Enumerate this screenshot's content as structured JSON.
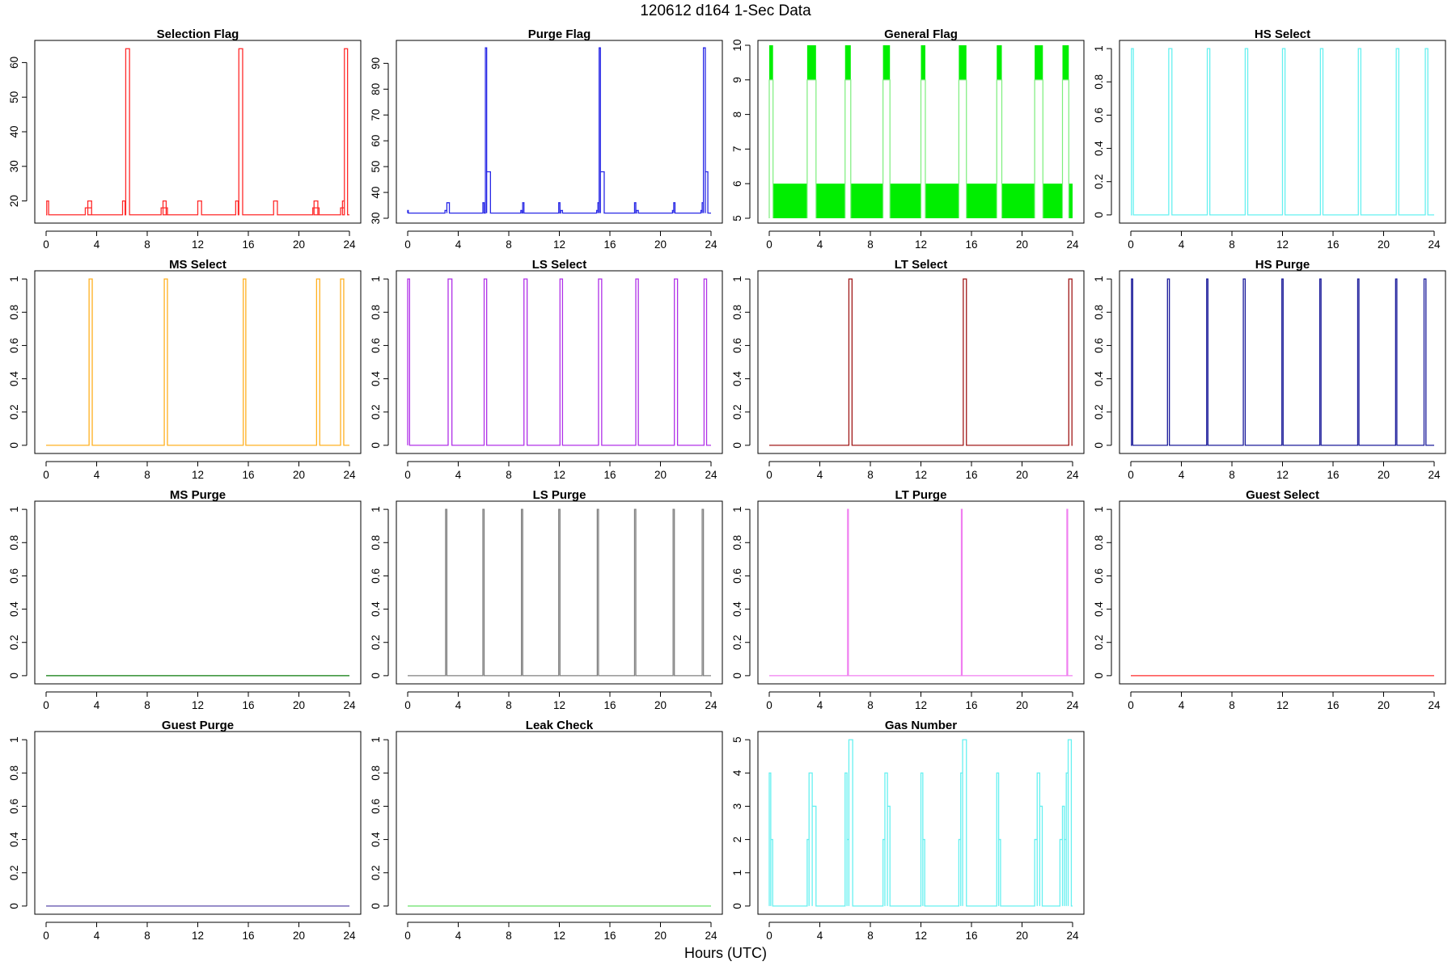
{
  "figure": {
    "title": "120612   d164   1-Sec Data",
    "xlabel": "Hours (UTC)"
  },
  "chart_data": [
    {
      "type": "line",
      "title": "Selection Flag",
      "color": "#ff2a2a",
      "xlim": [
        0,
        24
      ],
      "ylim": [
        15,
        65
      ],
      "x_ticks": [
        0,
        4,
        8,
        12,
        16,
        20,
        24
      ],
      "y_ticks": [
        20,
        30,
        40,
        50,
        60
      ],
      "base": 16,
      "events": [
        {
          "x": 0.05,
          "w": 0.15,
          "v": 20
        },
        {
          "x": 3.1,
          "w": 0.5,
          "v": 18
        },
        {
          "x": 3.3,
          "w": 0.3,
          "v": 20
        },
        {
          "x": 6.05,
          "w": 0.2,
          "v": 20
        },
        {
          "x": 6.3,
          "w": 0.3,
          "v": 64
        },
        {
          "x": 9.1,
          "w": 0.5,
          "v": 18
        },
        {
          "x": 9.25,
          "w": 0.25,
          "v": 20
        },
        {
          "x": 12.0,
          "w": 0.3,
          "v": 20
        },
        {
          "x": 15.0,
          "w": 0.2,
          "v": 20
        },
        {
          "x": 15.25,
          "w": 0.3,
          "v": 64
        },
        {
          "x": 18.0,
          "w": 0.3,
          "v": 20
        },
        {
          "x": 21.1,
          "w": 0.5,
          "v": 18
        },
        {
          "x": 21.2,
          "w": 0.3,
          "v": 20
        },
        {
          "x": 23.3,
          "w": 0.3,
          "v": 18
        },
        {
          "x": 23.45,
          "w": 0.15,
          "v": 20
        },
        {
          "x": 23.6,
          "w": 0.25,
          "v": 64
        }
      ]
    },
    {
      "type": "line",
      "title": "Purge Flag",
      "color": "#2828e6",
      "xlim": [
        0,
        24
      ],
      "ylim": [
        30,
        97
      ],
      "x_ticks": [
        0,
        4,
        8,
        12,
        16,
        20,
        24
      ],
      "y_ticks": [
        30,
        40,
        50,
        60,
        70,
        80,
        90
      ],
      "base": 32,
      "events": [
        {
          "x": 0.0,
          "w": 0.05,
          "v": 33
        },
        {
          "x": 2.95,
          "w": 0.15,
          "v": 33
        },
        {
          "x": 3.1,
          "w": 0.2,
          "v": 36
        },
        {
          "x": 5.95,
          "w": 0.1,
          "v": 36
        },
        {
          "x": 6.15,
          "w": 0.1,
          "v": 96
        },
        {
          "x": 6.25,
          "w": 0.3,
          "v": 48
        },
        {
          "x": 8.95,
          "w": 0.1,
          "v": 33
        },
        {
          "x": 9.1,
          "w": 0.1,
          "v": 36
        },
        {
          "x": 11.95,
          "w": 0.1,
          "v": 36
        },
        {
          "x": 12.1,
          "w": 0.15,
          "v": 33
        },
        {
          "x": 14.95,
          "w": 0.1,
          "v": 33
        },
        {
          "x": 15.05,
          "w": 0.1,
          "v": 36
        },
        {
          "x": 15.15,
          "w": 0.1,
          "v": 96
        },
        {
          "x": 15.25,
          "w": 0.3,
          "v": 48
        },
        {
          "x": 17.95,
          "w": 0.1,
          "v": 36
        },
        {
          "x": 18.1,
          "w": 0.15,
          "v": 33
        },
        {
          "x": 20.95,
          "w": 0.1,
          "v": 33
        },
        {
          "x": 21.05,
          "w": 0.1,
          "v": 36
        },
        {
          "x": 23.2,
          "w": 0.1,
          "v": 33
        },
        {
          "x": 23.3,
          "w": 0.1,
          "v": 36
        },
        {
          "x": 23.4,
          "w": 0.15,
          "v": 96
        },
        {
          "x": 23.55,
          "w": 0.2,
          "v": 48
        }
      ]
    },
    {
      "type": "area",
      "title": "General Flag",
      "color": "#00ee00",
      "line_color": "#7cee7c",
      "xlim": [
        0,
        24
      ],
      "ylim": [
        5,
        10
      ],
      "x_ticks": [
        0,
        4,
        8,
        12,
        16,
        20,
        24
      ],
      "y_ticks": [
        5,
        6,
        7,
        8,
        9,
        10
      ],
      "band": [
        5,
        6
      ],
      "band_segments": [
        [
          0.3,
          3.0
        ],
        [
          3.7,
          6.0
        ],
        [
          6.45,
          9.0
        ],
        [
          9.55,
          12.0
        ],
        [
          12.35,
          15.0
        ],
        [
          15.6,
          18.0
        ],
        [
          18.4,
          21.0
        ],
        [
          21.65,
          23.2
        ],
        [
          23.7,
          24.0
        ]
      ],
      "events": [
        {
          "x": 0.0,
          "w": 0.3,
          "v": 9,
          "top": 10
        },
        {
          "x": 3.0,
          "w": 0.7,
          "v": 9,
          "top": 10
        },
        {
          "x": 6.0,
          "w": 0.45,
          "v": 9,
          "top": 10
        },
        {
          "x": 9.0,
          "w": 0.55,
          "v": 9,
          "top": 10
        },
        {
          "x": 12.0,
          "w": 0.35,
          "v": 9,
          "top": 10
        },
        {
          "x": 15.0,
          "w": 0.6,
          "v": 9,
          "top": 10
        },
        {
          "x": 18.0,
          "w": 0.4,
          "v": 9,
          "top": 10
        },
        {
          "x": 21.0,
          "w": 0.65,
          "v": 9,
          "top": 10
        },
        {
          "x": 23.2,
          "w": 0.5,
          "v": 9,
          "top": 10
        }
      ]
    },
    {
      "type": "line",
      "title": "HS Select",
      "color": "#66f0f0",
      "xlim": [
        0,
        24
      ],
      "ylim": [
        -0.02,
        1.02
      ],
      "x_ticks": [
        0,
        4,
        8,
        12,
        16,
        20,
        24
      ],
      "y_ticks": [
        0.0,
        0.2,
        0.4,
        0.6,
        0.8,
        1.0
      ],
      "base": 0,
      "events": [
        {
          "x": 0.05,
          "w": 0.15,
          "v": 1
        },
        {
          "x": 3.0,
          "w": 0.25,
          "v": 1
        },
        {
          "x": 6.05,
          "w": 0.2,
          "v": 1
        },
        {
          "x": 9.05,
          "w": 0.2,
          "v": 1
        },
        {
          "x": 12.0,
          "w": 0.2,
          "v": 1
        },
        {
          "x": 15.0,
          "w": 0.2,
          "v": 1
        },
        {
          "x": 18.0,
          "w": 0.2,
          "v": 1
        },
        {
          "x": 21.0,
          "w": 0.2,
          "v": 1
        },
        {
          "x": 23.3,
          "w": 0.2,
          "v": 1
        }
      ]
    },
    {
      "type": "line",
      "title": "MS Select",
      "color": "#ffb020",
      "xlim": [
        0,
        24
      ],
      "ylim": [
        -0.02,
        1.02
      ],
      "x_ticks": [
        0,
        4,
        8,
        12,
        16,
        20,
        24
      ],
      "y_ticks": [
        0.0,
        0.2,
        0.4,
        0.6,
        0.8,
        1.0
      ],
      "base": 0,
      "events": [
        {
          "x": 3.4,
          "w": 0.25,
          "v": 1
        },
        {
          "x": 9.35,
          "w": 0.25,
          "v": 1
        },
        {
          "x": 15.6,
          "w": 0.2,
          "v": 1
        },
        {
          "x": 21.4,
          "w": 0.25,
          "v": 1
        },
        {
          "x": 23.3,
          "w": 0.25,
          "v": 1
        }
      ]
    },
    {
      "type": "line",
      "title": "LS Select",
      "color": "#b030e8",
      "xlim": [
        0,
        24
      ],
      "ylim": [
        -0.02,
        1.02
      ],
      "x_ticks": [
        0,
        4,
        8,
        12,
        16,
        20,
        24
      ],
      "y_ticks": [
        0.0,
        0.2,
        0.4,
        0.6,
        0.8,
        1.0
      ],
      "base": 0,
      "events": [
        {
          "x": 0.0,
          "w": 0.15,
          "v": 1
        },
        {
          "x": 3.2,
          "w": 0.3,
          "v": 1
        },
        {
          "x": 6.05,
          "w": 0.2,
          "v": 1
        },
        {
          "x": 9.2,
          "w": 0.25,
          "v": 1
        },
        {
          "x": 12.05,
          "w": 0.2,
          "v": 1
        },
        {
          "x": 15.1,
          "w": 0.25,
          "v": 1
        },
        {
          "x": 18.05,
          "w": 0.2,
          "v": 1
        },
        {
          "x": 21.1,
          "w": 0.25,
          "v": 1
        },
        {
          "x": 23.45,
          "w": 0.2,
          "v": 1
        }
      ]
    },
    {
      "type": "line",
      "title": "LT Select",
      "color": "#a01818",
      "xlim": [
        0,
        24
      ],
      "ylim": [
        -0.02,
        1.02
      ],
      "x_ticks": [
        0,
        4,
        8,
        12,
        16,
        20,
        24
      ],
      "y_ticks": [
        0.0,
        0.2,
        0.4,
        0.6,
        0.8,
        1.0
      ],
      "base": 0,
      "events": [
        {
          "x": 6.3,
          "w": 0.25,
          "v": 1
        },
        {
          "x": 15.35,
          "w": 0.25,
          "v": 1
        },
        {
          "x": 23.7,
          "w": 0.25,
          "v": 1
        }
      ]
    },
    {
      "type": "line",
      "title": "HS Purge",
      "color": "#1a1a9a",
      "xlim": [
        0,
        24
      ],
      "ylim": [
        -0.02,
        1.02
      ],
      "x_ticks": [
        0,
        4,
        8,
        12,
        16,
        20,
        24
      ],
      "y_ticks": [
        0.0,
        0.2,
        0.4,
        0.6,
        0.8,
        1.0
      ],
      "base": 0,
      "events": [
        {
          "x": 0.05,
          "w": 0.1,
          "v": 1
        },
        {
          "x": 2.9,
          "w": 0.15,
          "v": 1
        },
        {
          "x": 6.0,
          "w": 0.1,
          "v": 1
        },
        {
          "x": 8.9,
          "w": 0.15,
          "v": 1
        },
        {
          "x": 11.95,
          "w": 0.1,
          "v": 1
        },
        {
          "x": 14.95,
          "w": 0.1,
          "v": 1
        },
        {
          "x": 17.95,
          "w": 0.1,
          "v": 1
        },
        {
          "x": 20.95,
          "w": 0.1,
          "v": 1
        },
        {
          "x": 23.2,
          "w": 0.15,
          "v": 1
        }
      ]
    },
    {
      "type": "line",
      "title": "MS Purge",
      "color": "#0a7a0a",
      "xlim": [
        0,
        24
      ],
      "ylim": [
        -0.02,
        1.02
      ],
      "x_ticks": [
        0,
        4,
        8,
        12,
        16,
        20,
        24
      ],
      "y_ticks": [
        0.0,
        0.2,
        0.4,
        0.6,
        0.8,
        1.0
      ],
      "base": 0,
      "events": []
    },
    {
      "type": "line",
      "title": "LS Purge",
      "color": "#808080",
      "xlim": [
        0,
        24
      ],
      "ylim": [
        -0.02,
        1.02
      ],
      "x_ticks": [
        0,
        4,
        8,
        12,
        16,
        20,
        24
      ],
      "y_ticks": [
        0.0,
        0.2,
        0.4,
        0.6,
        0.8,
        1.0
      ],
      "base": 0,
      "events": [
        {
          "x": 3.0,
          "w": 0.1,
          "v": 1
        },
        {
          "x": 5.95,
          "w": 0.1,
          "v": 1
        },
        {
          "x": 9.0,
          "w": 0.1,
          "v": 1
        },
        {
          "x": 11.95,
          "w": 0.1,
          "v": 1
        },
        {
          "x": 15.0,
          "w": 0.1,
          "v": 1
        },
        {
          "x": 17.95,
          "w": 0.1,
          "v": 1
        },
        {
          "x": 21.0,
          "w": 0.1,
          "v": 1
        },
        {
          "x": 23.3,
          "w": 0.1,
          "v": 1
        }
      ]
    },
    {
      "type": "line",
      "title": "LT Purge",
      "color": "#f07ff0",
      "xlim": [
        0,
        24
      ],
      "ylim": [
        -0.02,
        1.02
      ],
      "x_ticks": [
        0,
        4,
        8,
        12,
        16,
        20,
        24
      ],
      "y_ticks": [
        0.0,
        0.2,
        0.4,
        0.6,
        0.8,
        1.0
      ],
      "base": 0,
      "events": [
        {
          "x": 6.2,
          "w": 0.06,
          "v": 1
        },
        {
          "x": 15.2,
          "w": 0.06,
          "v": 1
        },
        {
          "x": 23.55,
          "w": 0.06,
          "v": 1
        }
      ]
    },
    {
      "type": "line",
      "title": "Guest Select",
      "color": "#ff2a2a",
      "xlim": [
        0,
        24
      ],
      "ylim": [
        -0.02,
        1.02
      ],
      "x_ticks": [
        0,
        4,
        8,
        12,
        16,
        20,
        24
      ],
      "y_ticks": [
        0.0,
        0.2,
        0.4,
        0.6,
        0.8,
        1.0
      ],
      "base": 0,
      "events": []
    },
    {
      "type": "line",
      "title": "Guest Purge",
      "color": "#5a4aa8",
      "xlim": [
        0,
        24
      ],
      "ylim": [
        -0.02,
        1.02
      ],
      "x_ticks": [
        0,
        4,
        8,
        12,
        16,
        20,
        24
      ],
      "y_ticks": [
        0.0,
        0.2,
        0.4,
        0.6,
        0.8,
        1.0
      ],
      "base": 0,
      "events": []
    },
    {
      "type": "line",
      "title": "Leak Check",
      "color": "#66e066",
      "xlim": [
        0,
        24
      ],
      "ylim": [
        -0.02,
        1.02
      ],
      "x_ticks": [
        0,
        4,
        8,
        12,
        16,
        20,
        24
      ],
      "y_ticks": [
        0.0,
        0.2,
        0.4,
        0.6,
        0.8,
        1.0
      ],
      "base": 0,
      "events": []
    },
    {
      "type": "line",
      "title": "Gas Number",
      "color": "#66f0f0",
      "xlim": [
        0,
        24
      ],
      "ylim": [
        -0.1,
        5.1
      ],
      "x_ticks": [
        0,
        4,
        8,
        12,
        16,
        20,
        24
      ],
      "y_ticks": [
        0,
        1,
        2,
        3,
        4,
        5
      ],
      "base": 0,
      "events": [
        {
          "x": 0.0,
          "w": 0.12,
          "v": 4
        },
        {
          "x": 0.12,
          "w": 0.15,
          "v": 2
        },
        {
          "x": 3.0,
          "w": 0.15,
          "v": 2
        },
        {
          "x": 3.15,
          "w": 0.25,
          "v": 4
        },
        {
          "x": 3.4,
          "w": 0.3,
          "v": 3
        },
        {
          "x": 6.0,
          "w": 0.15,
          "v": 4
        },
        {
          "x": 6.15,
          "w": 0.15,
          "v": 2
        },
        {
          "x": 6.3,
          "w": 0.3,
          "v": 5
        },
        {
          "x": 9.0,
          "w": 0.15,
          "v": 2
        },
        {
          "x": 9.15,
          "w": 0.2,
          "v": 4
        },
        {
          "x": 9.35,
          "w": 0.2,
          "v": 3
        },
        {
          "x": 12.0,
          "w": 0.15,
          "v": 4
        },
        {
          "x": 12.15,
          "w": 0.15,
          "v": 2
        },
        {
          "x": 15.0,
          "w": 0.15,
          "v": 2
        },
        {
          "x": 15.15,
          "w": 0.15,
          "v": 4
        },
        {
          "x": 15.3,
          "w": 0.3,
          "v": 5
        },
        {
          "x": 18.0,
          "w": 0.15,
          "v": 4
        },
        {
          "x": 18.15,
          "w": 0.15,
          "v": 2
        },
        {
          "x": 21.0,
          "w": 0.2,
          "v": 2
        },
        {
          "x": 21.2,
          "w": 0.2,
          "v": 4
        },
        {
          "x": 21.4,
          "w": 0.2,
          "v": 3
        },
        {
          "x": 23.0,
          "w": 0.2,
          "v": 2
        },
        {
          "x": 23.2,
          "w": 0.15,
          "v": 3
        },
        {
          "x": 23.35,
          "w": 0.15,
          "v": 2
        },
        {
          "x": 23.5,
          "w": 0.15,
          "v": 4
        },
        {
          "x": 23.65,
          "w": 0.25,
          "v": 5
        }
      ]
    }
  ]
}
